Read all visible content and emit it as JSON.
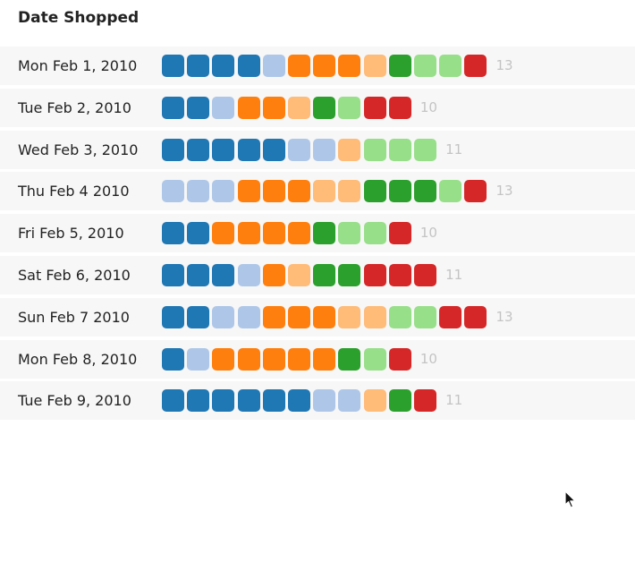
{
  "title": "Date Shopped",
  "palette": {
    "dark-blue": "#1f77b4",
    "light-blue": "#aec7e8",
    "dark-orange": "#ff7f0e",
    "light-orange": "#ffbb78",
    "dark-green": "#2ca02c",
    "light-green": "#98df8a",
    "red": "#d62728"
  },
  "chart_data": {
    "type": "table",
    "title": "Date Shopped",
    "rows": [
      {
        "date": "Mon Feb 1, 2010",
        "count": "13",
        "squares": [
          "dark-blue",
          "dark-blue",
          "dark-blue",
          "dark-blue",
          "light-blue",
          "dark-orange",
          "dark-orange",
          "dark-orange",
          "light-orange",
          "dark-green",
          "light-green",
          "light-green",
          "red"
        ]
      },
      {
        "date": "Tue Feb 2, 2010",
        "count": "10",
        "squares": [
          "dark-blue",
          "dark-blue",
          "light-blue",
          "dark-orange",
          "dark-orange",
          "light-orange",
          "dark-green",
          "light-green",
          "red",
          "red"
        ]
      },
      {
        "date": "Wed Feb 3, 2010",
        "count": "11",
        "squares": [
          "dark-blue",
          "dark-blue",
          "dark-blue",
          "dark-blue",
          "dark-blue",
          "light-blue",
          "light-blue",
          "light-orange",
          "light-green",
          "light-green",
          "light-green"
        ]
      },
      {
        "date": "Thu Feb 4 2010",
        "count": "13",
        "squares": [
          "light-blue",
          "light-blue",
          "light-blue",
          "dark-orange",
          "dark-orange",
          "dark-orange",
          "light-orange",
          "light-orange",
          "dark-green",
          "dark-green",
          "dark-green",
          "light-green",
          "red"
        ]
      },
      {
        "date": "Fri Feb 5, 2010",
        "count": "10",
        "squares": [
          "dark-blue",
          "dark-blue",
          "dark-orange",
          "dark-orange",
          "dark-orange",
          "dark-orange",
          "dark-green",
          "light-green",
          "light-green",
          "red"
        ]
      },
      {
        "date": "Sat Feb 6, 2010",
        "count": "11",
        "squares": [
          "dark-blue",
          "dark-blue",
          "dark-blue",
          "light-blue",
          "dark-orange",
          "light-orange",
          "dark-green",
          "dark-green",
          "red",
          "red",
          "red"
        ]
      },
      {
        "date": "Sun Feb 7 2010",
        "count": "13",
        "squares": [
          "dark-blue",
          "dark-blue",
          "light-blue",
          "light-blue",
          "dark-orange",
          "dark-orange",
          "dark-orange",
          "light-orange",
          "light-orange",
          "light-green",
          "light-green",
          "red",
          "red"
        ]
      },
      {
        "date": "Mon Feb 8, 2010",
        "count": "10",
        "squares": [
          "dark-blue",
          "light-blue",
          "dark-orange",
          "dark-orange",
          "dark-orange",
          "dark-orange",
          "dark-orange",
          "dark-green",
          "light-green",
          "red"
        ]
      },
      {
        "date": "Tue Feb 9, 2010",
        "count": "11",
        "squares": [
          "dark-blue",
          "dark-blue",
          "dark-blue",
          "dark-blue",
          "dark-blue",
          "dark-blue",
          "light-blue",
          "light-blue",
          "light-orange",
          "dark-green",
          "red"
        ]
      }
    ]
  },
  "cursor": {
    "icon": "mouse-pointer-icon"
  }
}
